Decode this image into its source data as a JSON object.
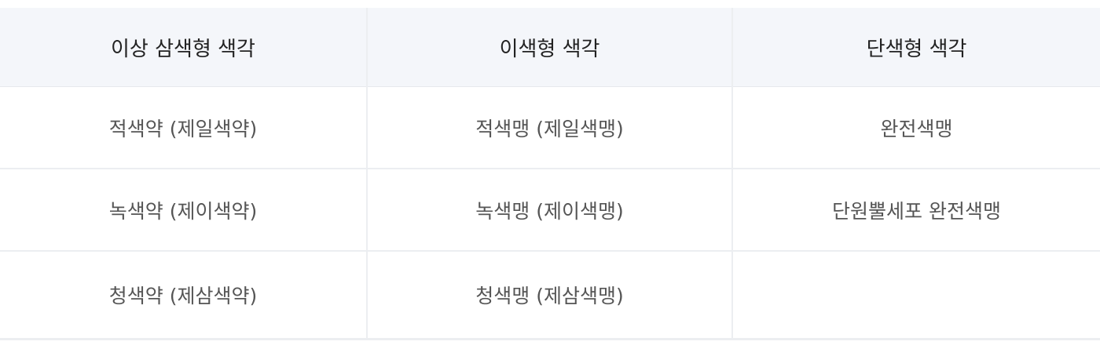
{
  "table": {
    "headers": [
      "이상 삼색형 색각",
      "이색형 색각",
      "단색형 색각"
    ],
    "rows": [
      [
        "적색약 (제일색약)",
        "적색맹 (제일색맹)",
        "완전색맹"
      ],
      [
        "녹색약 (제이색약)",
        "녹색맹 (제이색맹)",
        "단원뿔세포 완전색맹"
      ],
      [
        "청색약 (제삼색약)",
        "청색맹 (제삼색맹)",
        ""
      ]
    ]
  },
  "colors": {
    "header_background": "#f4f6fa",
    "header_text": "#222222",
    "cell_text": "#555555",
    "border": "#eceef1"
  }
}
